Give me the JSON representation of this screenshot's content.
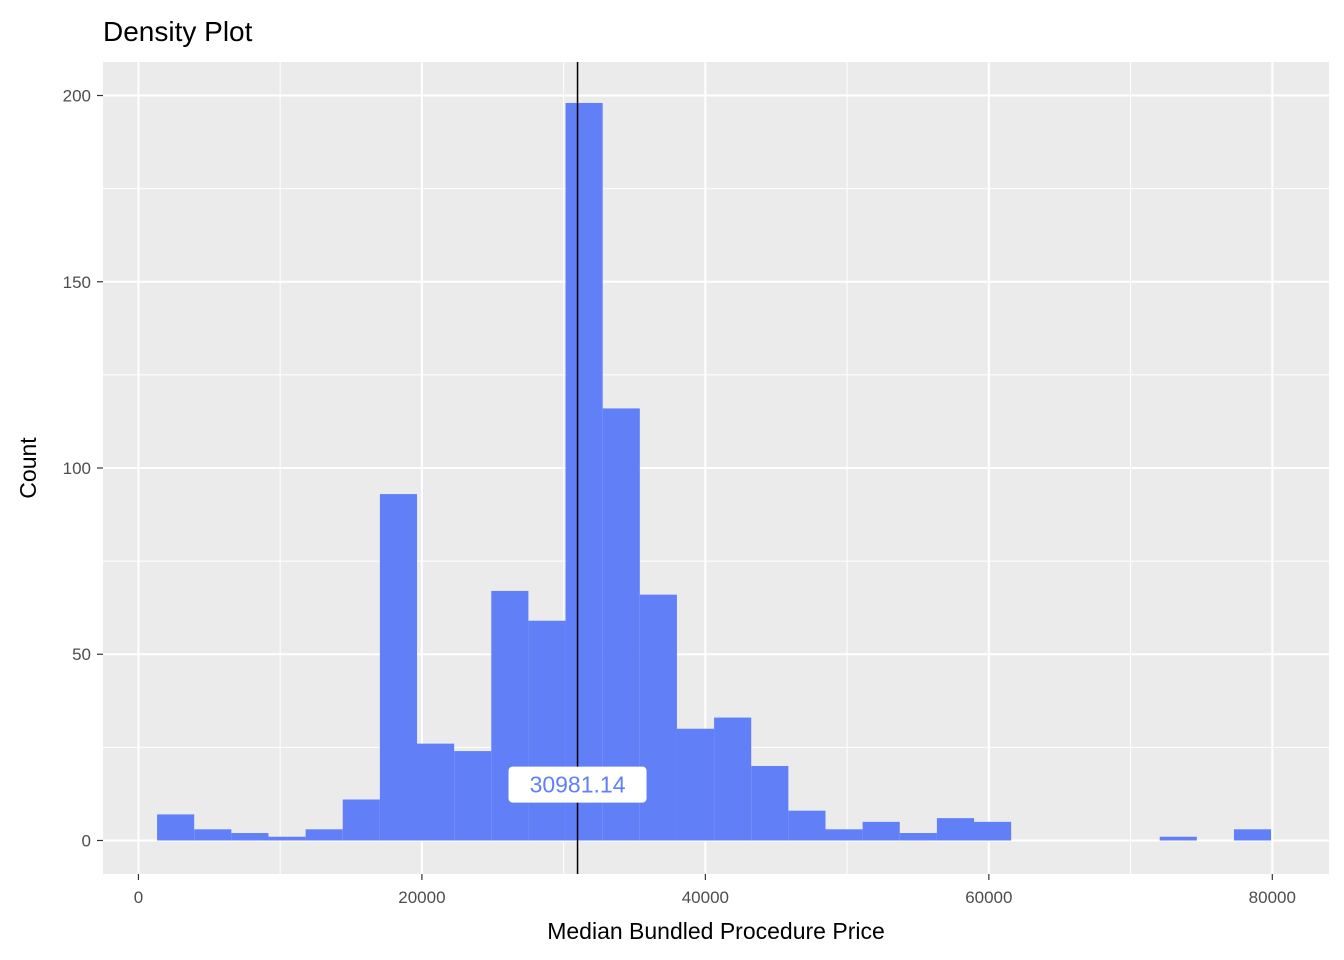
{
  "chart_data": {
    "type": "bar",
    "title": "Density Plot",
    "xlabel": "Median Bundled Procedure Price",
    "ylabel": "Count",
    "xlim": [
      -2500,
      84000
    ],
    "ylim": [
      -9,
      209
    ],
    "x_ticks": [
      0,
      20000,
      40000,
      60000,
      80000
    ],
    "x_tick_labels": [
      "0",
      "20000",
      "40000",
      "60000",
      "80000"
    ],
    "y_ticks": [
      0,
      50,
      100,
      150,
      200
    ],
    "y_tick_labels": [
      "0",
      "50",
      "100",
      "150",
      "200"
    ],
    "grid": true,
    "bins": [
      {
        "x0": 1315,
        "x1": 3935,
        "count": 7
      },
      {
        "x0": 3935,
        "x1": 6555,
        "count": 3
      },
      {
        "x0": 6555,
        "x1": 9175,
        "count": 2
      },
      {
        "x0": 9175,
        "x1": 11795,
        "count": 1
      },
      {
        "x0": 11795,
        "x1": 14415,
        "count": 3
      },
      {
        "x0": 14415,
        "x1": 17035,
        "count": 11
      },
      {
        "x0": 17035,
        "x1": 19655,
        "count": 93
      },
      {
        "x0": 19655,
        "x1": 22275,
        "count": 26
      },
      {
        "x0": 22275,
        "x1": 24895,
        "count": 24
      },
      {
        "x0": 24895,
        "x1": 27515,
        "count": 67
      },
      {
        "x0": 27515,
        "x1": 30135,
        "count": 59
      },
      {
        "x0": 30135,
        "x1": 32755,
        "count": 198
      },
      {
        "x0": 32755,
        "x1": 35375,
        "count": 116
      },
      {
        "x0": 35375,
        "x1": 37995,
        "count": 66
      },
      {
        "x0": 37995,
        "x1": 40615,
        "count": 30
      },
      {
        "x0": 40615,
        "x1": 43235,
        "count": 33
      },
      {
        "x0": 43235,
        "x1": 45855,
        "count": 20
      },
      {
        "x0": 45855,
        "x1": 48475,
        "count": 8
      },
      {
        "x0": 48475,
        "x1": 51095,
        "count": 3
      },
      {
        "x0": 51095,
        "x1": 53715,
        "count": 5
      },
      {
        "x0": 53715,
        "x1": 56335,
        "count": 2
      },
      {
        "x0": 56335,
        "x1": 58955,
        "count": 6
      },
      {
        "x0": 58955,
        "x1": 61575,
        "count": 5
      },
      {
        "x0": 61575,
        "x1": 64195,
        "count": 0
      },
      {
        "x0": 64195,
        "x1": 66815,
        "count": 0
      },
      {
        "x0": 66815,
        "x1": 69435,
        "count": 0
      },
      {
        "x0": 69435,
        "x1": 72055,
        "count": 0
      },
      {
        "x0": 72055,
        "x1": 74675,
        "count": 1
      },
      {
        "x0": 74675,
        "x1": 77295,
        "count": 0
      },
      {
        "x0": 77295,
        "x1": 79915,
        "count": 3
      }
    ],
    "mean_line": {
      "value": 30981.14,
      "label": "30981.14",
      "label_y": 15
    },
    "colors": {
      "bar": "#6180F7",
      "panel": "#EBEBEB",
      "grid": "#FFFFFF",
      "line": "#000000",
      "annotation_text": "#6180F7",
      "annotation_fill": "#FFFFFF"
    }
  }
}
